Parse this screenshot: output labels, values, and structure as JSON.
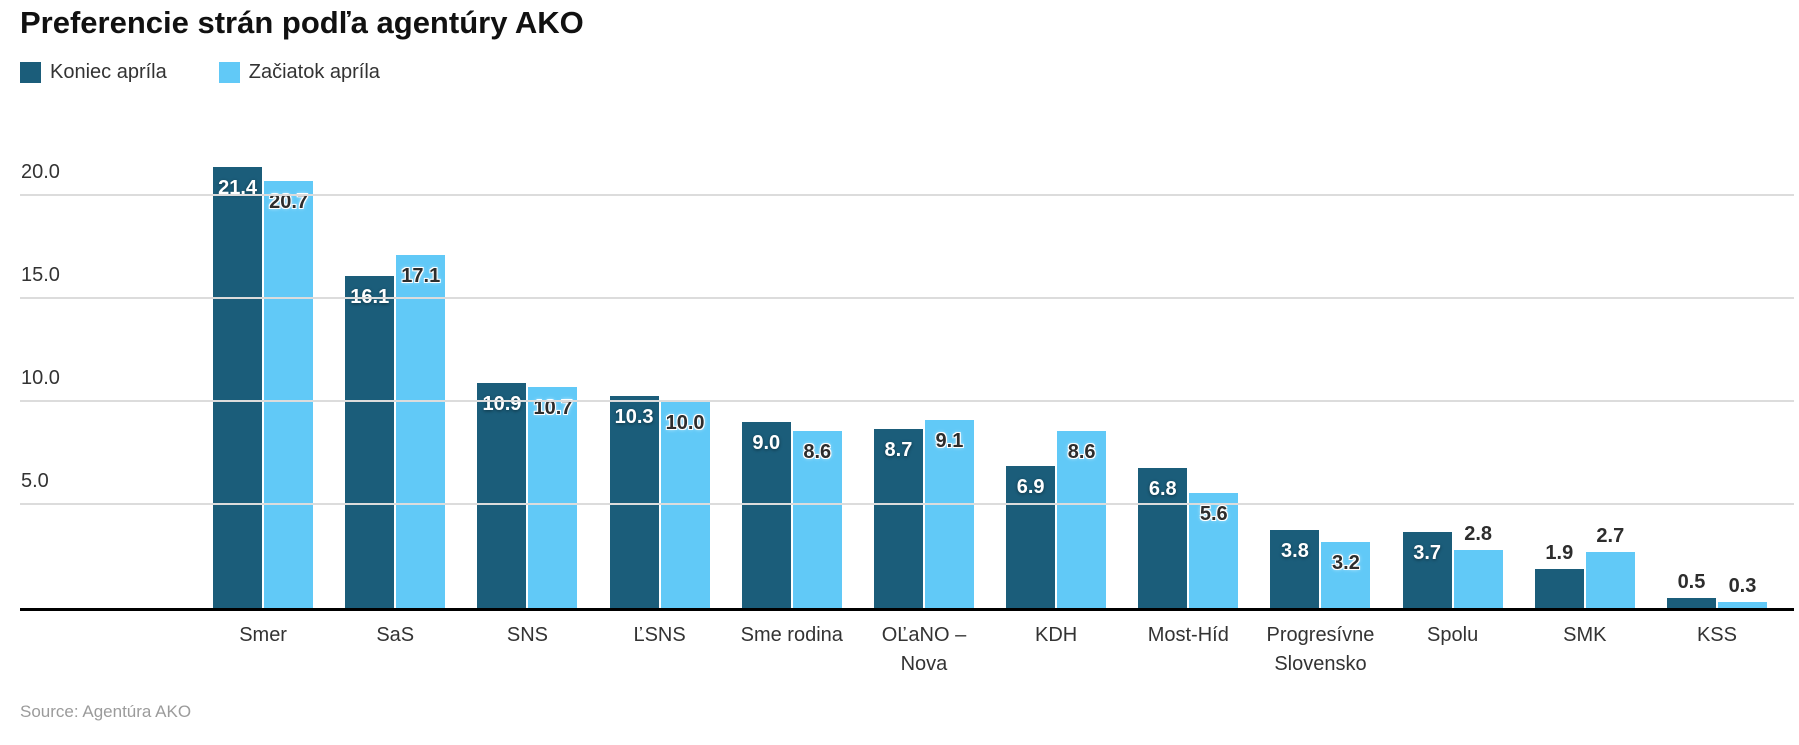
{
  "title": "Preferencie strán podľa agentúry AKO",
  "source": "Source: Agentúra AKO",
  "chart_data": {
    "type": "bar",
    "subtype": "grouped-column",
    "title": "Preferencie strán podľa agentúry AKO",
    "categories": [
      "Smer",
      "SaS",
      "SNS",
      "ĽSNS",
      "Sme rodina",
      "OĽaNO –\nNova",
      "KDH",
      "Most-Híd",
      "Progresívne\nSlovensko",
      "Spolu",
      "SMK",
      "KSS"
    ],
    "series": [
      {
        "name": "Koniec apríla",
        "color": "#1b5d7a",
        "values": [
          21.4,
          16.1,
          10.9,
          10.3,
          9.0,
          8.7,
          6.9,
          6.8,
          3.8,
          3.7,
          1.9,
          0.5
        ]
      },
      {
        "name": "Začiatok apríla",
        "color": "#61c9f7",
        "values": [
          20.7,
          17.1,
          10.7,
          10.0,
          8.6,
          9.1,
          8.6,
          5.6,
          3.2,
          2.8,
          2.7,
          0.3
        ]
      }
    ],
    "xlabel": "",
    "ylabel": "",
    "ylim": [
      0,
      23.4
    ],
    "yticks": [
      "5.0",
      "10.0",
      "15.0",
      "20.0"
    ],
    "grid": true,
    "legend_position": "top-left",
    "value_labels": true,
    "value_label_format": "one-decimal",
    "source": "Source: Agentúra AKO",
    "colors": {
      "axis_text": "#333333",
      "gridline": "#dcdcdc",
      "baseline": "#000000",
      "source_text": "#9b9b9b"
    }
  }
}
